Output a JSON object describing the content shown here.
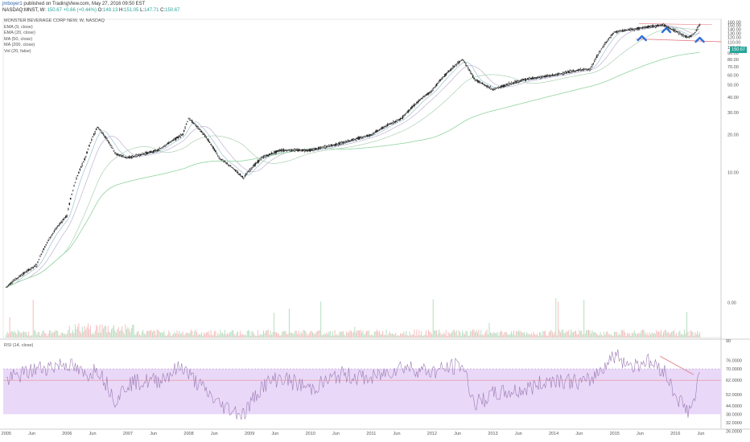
{
  "header": {
    "user": "jmboyer1",
    "published": "published on TradingView.com, May 27, 2016 09:50 EST"
  },
  "quote": {
    "symbol": "NASDAQ:MNST, W",
    "last": "150.67",
    "change": "+0.66 (+0.44%)",
    "open_label": "O:",
    "open": "149.13",
    "high_label": "H:",
    "high": "151.05",
    "low_label": "L:",
    "low": "147.71",
    "close_label": "C:",
    "close": "150.67"
  },
  "indicators": [
    "MONSTER BEVERAGE CORP NEW, W, NASDAQ",
    "EMA (9, close)",
    "EMA (20, close)",
    "MA (50, close)",
    "MA (200, close)",
    "Vol (20, false)"
  ],
  "rsi_label": "RSI (14, close)",
  "last_price_tag": "150.67",
  "colors": {
    "up": "#26a69a",
    "down": "#ef5350",
    "candle": "#222222",
    "rsi_band": "#e9d8f7",
    "rsi_line": "#9c7bb5",
    "trend": "#e0707a",
    "pattern_marker": "#2f6fd6"
  },
  "chart_data": [
    {
      "type": "line",
      "title": "MONSTER BEVERAGE CORP NEW, W, NASDAQ",
      "log_scale": true,
      "ylim": [
        0.6,
        168
      ],
      "x_ticks": [
        "2005",
        "Jun",
        "2006",
        "Jun",
        "2007",
        "Jun",
        "2008",
        "Jun",
        "2009",
        "Jun",
        "2010",
        "Jun",
        "2011",
        "Jun",
        "2012",
        "Jun",
        "2013",
        "Jun",
        "2014",
        "Jun",
        "2015",
        "Jun",
        "2016",
        "Jun"
      ],
      "y_ticks": [
        "160.00",
        "150.00",
        "140.00",
        "130.00",
        "120.00",
        "110.00",
        "100.00",
        "90.00",
        "80.00",
        "70.00",
        "60.00",
        "50.00",
        "40.00",
        "30.00",
        "20.00",
        "10.00",
        "0.00"
      ],
      "x": [
        2005.0,
        2005.5,
        2006.0,
        2006.3,
        2006.5,
        2006.8,
        2007.0,
        2007.5,
        2007.9,
        2008.0,
        2008.5,
        2008.9,
        2009.2,
        2009.5,
        2010.0,
        2010.5,
        2011.0,
        2011.5,
        2012.0,
        2012.5,
        2012.7,
        2013.0,
        2013.5,
        2014.0,
        2014.5,
        2014.6,
        2015.0,
        2015.3,
        2015.5,
        2015.8,
        2016.0,
        2016.2,
        2016.3,
        2016.4
      ],
      "series": [
        {
          "values": [
            1.2,
            1.8,
            4.5,
            13,
            23,
            14,
            13,
            15,
            20,
            27,
            13,
            9,
            13,
            15,
            15,
            17,
            20,
            27,
            45,
            80,
            55,
            46,
            55,
            60,
            67,
            66,
            133,
            140,
            145,
            152,
            135,
            120,
            127,
            150.7
          ]
        }
      ],
      "volume_note": "volume histogram at bottom of price pane",
      "annotations": [
        "three blue peak markers (head and shoulders)",
        "red neckline below",
        "red resistance line at top"
      ]
    },
    {
      "type": "line",
      "title": "RSI (14, close)",
      "ylim": [
        28,
        90
      ],
      "y_ticks": [
        "90",
        "76.0000",
        "70.0000",
        "62.0000",
        "52.0000",
        "44.0000",
        "38.0000",
        "32.0000",
        "26.0000"
      ],
      "band": [
        38,
        70
      ],
      "x": [
        2005.0,
        2005.5,
        2006.0,
        2006.3,
        2006.5,
        2006.8,
        2007.0,
        2007.5,
        2007.9,
        2008.0,
        2008.5,
        2008.9,
        2009.2,
        2009.5,
        2010.0,
        2010.5,
        2011.0,
        2011.5,
        2012.0,
        2012.5,
        2012.7,
        2013.0,
        2013.5,
        2014.0,
        2014.5,
        2014.6,
        2015.0,
        2015.3,
        2015.5,
        2015.8,
        2016.0,
        2016.2,
        2016.3,
        2016.4
      ],
      "series": [
        {
          "values": [
            62,
            70,
            74,
            65,
            71,
            48,
            60,
            62,
            72,
            66,
            45,
            38,
            58,
            64,
            56,
            66,
            63,
            72,
            68,
            73,
            45,
            52,
            55,
            63,
            60,
            62,
            80,
            72,
            76,
            70,
            52,
            40,
            46,
            66
          ]
        }
      ]
    }
  ]
}
